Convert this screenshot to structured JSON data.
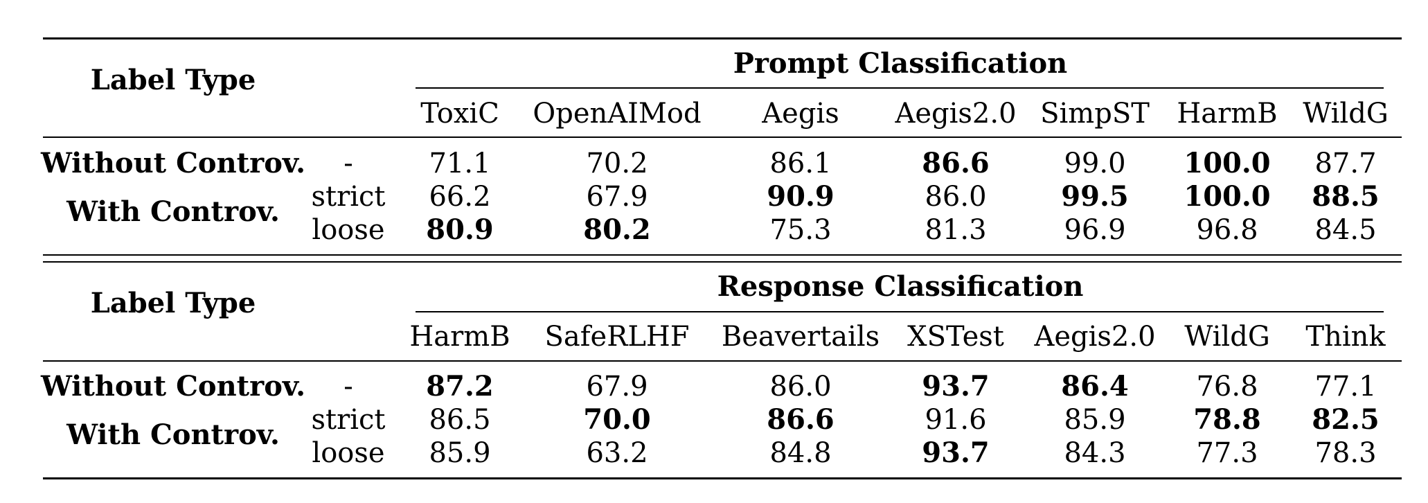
{
  "sections": [
    {
      "group_title": "Prompt Classification",
      "label_header": "Label Type",
      "columns": [
        "ToxiC",
        "OpenAIMod",
        "Aegis",
        "Aegis2.0",
        "SimpST",
        "HarmB",
        "WildG"
      ],
      "rows": [
        {
          "label": "Without Controv.",
          "variants": [
            {
              "name": "-",
              "values": [
                "71.1",
                "70.2",
                "86.1",
                "86.6",
                "99.0",
                "100.0",
                "87.7"
              ],
              "bold": [
                false,
                false,
                false,
                true,
                false,
                true,
                false
              ]
            }
          ]
        },
        {
          "label": "With Controv.",
          "variants": [
            {
              "name": "strict",
              "values": [
                "66.2",
                "67.9",
                "90.9",
                "86.0",
                "99.5",
                "100.0",
                "88.5"
              ],
              "bold": [
                false,
                false,
                true,
                false,
                true,
                true,
                true
              ]
            },
            {
              "name": "loose",
              "values": [
                "80.9",
                "80.2",
                "75.3",
                "81.3",
                "96.9",
                "96.8",
                "84.5"
              ],
              "bold": [
                true,
                true,
                false,
                false,
                false,
                false,
                false
              ]
            }
          ]
        }
      ]
    },
    {
      "group_title": "Response Classification",
      "label_header": "Label Type",
      "columns": [
        "HarmB",
        "SafeRLHF",
        "Beavertails",
        "XSTest",
        "Aegis2.0",
        "WildG",
        "Think"
      ],
      "rows": [
        {
          "label": "Without Controv.",
          "variants": [
            {
              "name": "-",
              "values": [
                "87.2",
                "67.9",
                "86.0",
                "93.7",
                "86.4",
                "76.8",
                "77.1"
              ],
              "bold": [
                true,
                false,
                false,
                true,
                true,
                false,
                false
              ]
            }
          ]
        },
        {
          "label": "With Controv.",
          "variants": [
            {
              "name": "strict",
              "values": [
                "86.5",
                "70.0",
                "86.6",
                "91.6",
                "85.9",
                "78.8",
                "82.5"
              ],
              "bold": [
                false,
                true,
                true,
                false,
                false,
                true,
                true
              ]
            },
            {
              "name": "loose",
              "values": [
                "85.9",
                "63.2",
                "84.8",
                "93.7",
                "84.3",
                "77.3",
                "78.3"
              ],
              "bold": [
                false,
                false,
                false,
                true,
                false,
                false,
                false
              ]
            }
          ]
        }
      ]
    }
  ]
}
